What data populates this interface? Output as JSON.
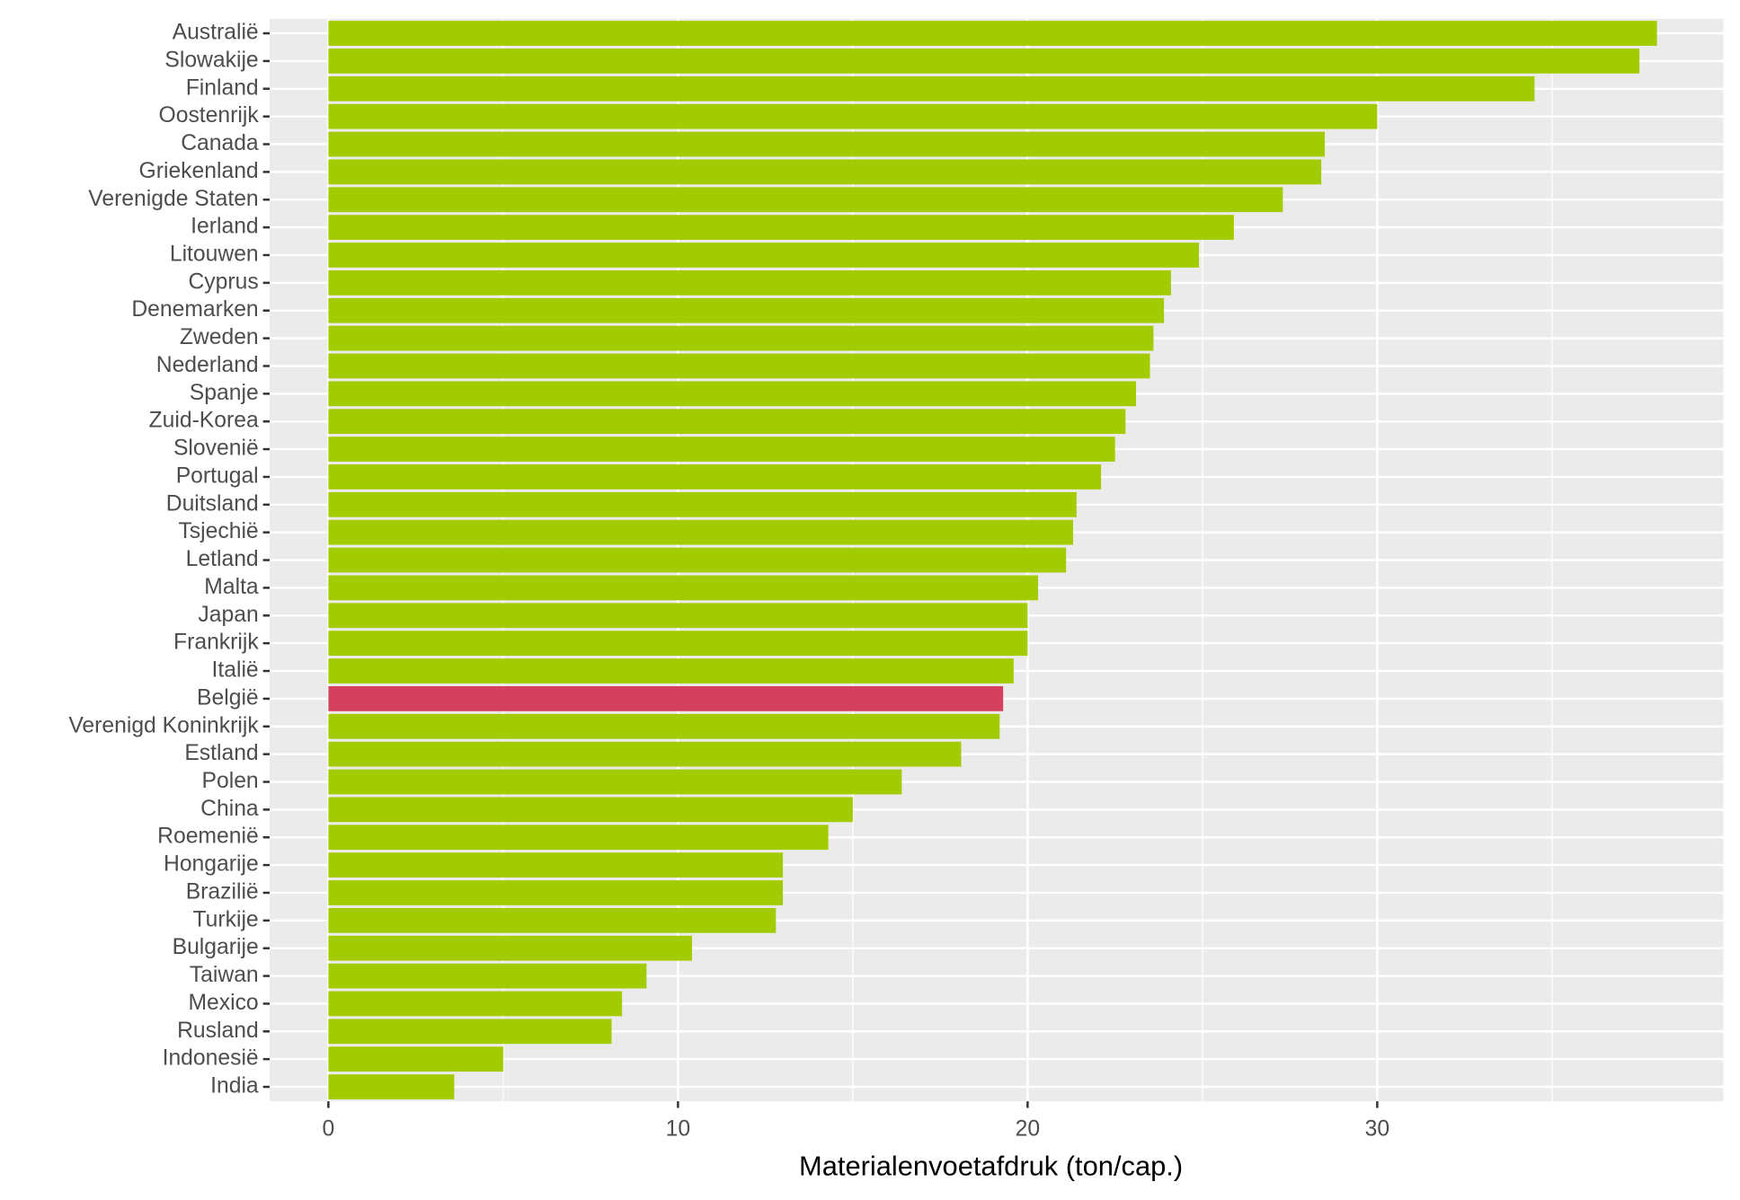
{
  "chart_data": {
    "type": "bar",
    "orientation": "horizontal",
    "x_label": "Materialenvoetafdruk (ton/cap.)",
    "categories": [
      "Australië",
      "Slowakije",
      "Finland",
      "Oostenrijk",
      "Canada",
      "Griekenland",
      "Verenigde Staten",
      "Ierland",
      "Litouwen",
      "Cyprus",
      "Denemarken",
      "Zweden",
      "Nederland",
      "Spanje",
      "Zuid-Korea",
      "Slovenië",
      "Portugal",
      "Duitsland",
      "Tsjechië",
      "Letland",
      "Malta",
      "Japan",
      "Frankrijk",
      "Italië",
      "België",
      "Verenigd Koninkrijk",
      "Estland",
      "Polen",
      "China",
      "Roemenië",
      "Hongarije",
      "Brazilië",
      "Turkije",
      "Bulgarije",
      "Taiwan",
      "Mexico",
      "Rusland",
      "Indonesië",
      "India"
    ],
    "values": [
      38.0,
      37.5,
      34.5,
      30.0,
      28.5,
      28.4,
      27.3,
      25.9,
      24.9,
      24.1,
      23.9,
      23.6,
      23.5,
      23.1,
      22.8,
      22.5,
      22.1,
      21.4,
      21.3,
      21.1,
      20.3,
      20.0,
      20.0,
      19.6,
      19.3,
      19.2,
      18.1,
      16.4,
      15.0,
      14.3,
      13.0,
      13.0,
      12.8,
      10.4,
      9.1,
      8.4,
      8.1,
      5.0,
      3.6
    ],
    "colors": [
      "#a3cc00",
      "#a3cc00",
      "#a3cc00",
      "#a3cc00",
      "#a3cc00",
      "#a3cc00",
      "#a3cc00",
      "#a3cc00",
      "#a3cc00",
      "#a3cc00",
      "#a3cc00",
      "#a3cc00",
      "#a3cc00",
      "#a3cc00",
      "#a3cc00",
      "#a3cc00",
      "#a3cc00",
      "#a3cc00",
      "#a3cc00",
      "#a3cc00",
      "#a3cc00",
      "#a3cc00",
      "#a3cc00",
      "#a3cc00",
      "#d6405f",
      "#a3cc00",
      "#a3cc00",
      "#a3cc00",
      "#a3cc00",
      "#a3cc00",
      "#a3cc00",
      "#a3cc00",
      "#a3cc00",
      "#a3cc00",
      "#a3cc00",
      "#a3cc00",
      "#a3cc00",
      "#a3cc00",
      "#a3cc00"
    ],
    "xlim": [
      -1.68,
      39.9
    ],
    "xticks": [
      0,
      10,
      20,
      30
    ],
    "minor_xticks": [
      5,
      15,
      25,
      35
    ],
    "grid": true
  }
}
